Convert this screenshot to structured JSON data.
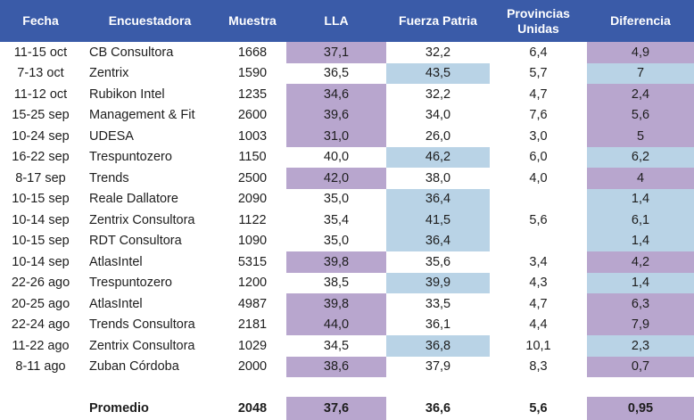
{
  "table": {
    "headers": [
      "Fecha",
      "Encuestadora",
      "Muestra",
      "LLA",
      "Fuerza Patria",
      "Provincias Unidas",
      "Diferencia"
    ],
    "header_provincias_line1": "Provincias",
    "header_provincias_line2": "Unidas",
    "rows": [
      {
        "fecha": "11-15 oct",
        "encuestadora": "CB Consultora",
        "muestra": "1668",
        "lla": "37,1",
        "fp": "32,2",
        "pu": "6,4",
        "dif": "4,9",
        "hl": "lla",
        "dif_hl": "purple"
      },
      {
        "fecha": "7-13 oct",
        "encuestadora": "Zentrix",
        "muestra": "1590",
        "lla": "36,5",
        "fp": "43,5",
        "pu": "5,7",
        "dif": "7",
        "hl": "fp",
        "dif_hl": "blue"
      },
      {
        "fecha": "11-12 oct",
        "encuestadora": "Rubikon Intel",
        "muestra": "1235",
        "lla": "34,6",
        "fp": "32,2",
        "pu": "4,7",
        "dif": "2,4",
        "hl": "lla",
        "dif_hl": "purple"
      },
      {
        "fecha": "15-25 sep",
        "encuestadora": "Management & Fit",
        "muestra": "2600",
        "lla": "39,6",
        "fp": "34,0",
        "pu": "7,6",
        "dif": "5,6",
        "hl": "lla",
        "dif_hl": "purple"
      },
      {
        "fecha": "10-24 sep",
        "encuestadora": "UDESA",
        "muestra": "1003",
        "lla": "31,0",
        "fp": "26,0",
        "pu": "3,0",
        "dif": "5",
        "hl": "lla",
        "dif_hl": "purple"
      },
      {
        "fecha": "16-22 sep",
        "encuestadora": "Trespuntozero",
        "muestra": "1150",
        "lla": "40,0",
        "fp": "46,2",
        "pu": "6,0",
        "dif": "6,2",
        "hl": "fp",
        "dif_hl": "blue"
      },
      {
        "fecha": "8-17 sep",
        "encuestadora": "Trends",
        "muestra": "2500",
        "lla": "42,0",
        "fp": "38,0",
        "pu": "4,0",
        "dif": "4",
        "hl": "lla",
        "dif_hl": "purple"
      },
      {
        "fecha": "10-15 sep",
        "encuestadora": "Reale Dallatore",
        "muestra": "2090",
        "lla": "35,0",
        "fp": "36,4",
        "pu": "",
        "dif": "1,4",
        "hl": "fp",
        "dif_hl": "blue"
      },
      {
        "fecha": "10-14 sep",
        "encuestadora": "Zentrix Consultora",
        "muestra": "1122",
        "lla": "35,4",
        "fp": "41,5",
        "pu": "5,6",
        "dif": "6,1",
        "hl": "fp",
        "dif_hl": "blue"
      },
      {
        "fecha": "10-15 sep",
        "encuestadora": "RDT Consultora",
        "muestra": "1090",
        "lla": "35,0",
        "fp": "36,4",
        "pu": "",
        "dif": "1,4",
        "hl": "fp",
        "dif_hl": "blue"
      },
      {
        "fecha": "10-14 sep",
        "encuestadora": "AtlasIntel",
        "muestra": "5315",
        "lla": "39,8",
        "fp": "35,6",
        "pu": "3,4",
        "dif": "4,2",
        "hl": "lla",
        "dif_hl": "purple"
      },
      {
        "fecha": "22-26 ago",
        "encuestadora": "Trespuntozero",
        "muestra": "1200",
        "lla": "38,5",
        "fp": "39,9",
        "pu": "4,3",
        "dif": "1,4",
        "hl": "fp",
        "dif_hl": "blue"
      },
      {
        "fecha": "20-25 ago",
        "encuestadora": "AtlasIntel",
        "muestra": "4987",
        "lla": "39,8",
        "fp": "33,5",
        "pu": "4,7",
        "dif": "6,3",
        "hl": "lla",
        "dif_hl": "purple"
      },
      {
        "fecha": "22-24 ago",
        "encuestadora": "Trends Consultora",
        "muestra": "2181",
        "lla": "44,0",
        "fp": "36,1",
        "pu": "4,4",
        "dif": "7,9",
        "hl": "lla",
        "dif_hl": "purple"
      },
      {
        "fecha": "11-22 ago",
        "encuestadora": "Zentrix Consultora",
        "muestra": "1029",
        "lla": "34,5",
        "fp": "36,8",
        "pu": "10,1",
        "dif": "2,3",
        "hl": "fp",
        "dif_hl": "blue"
      },
      {
        "fecha": "8-11 ago",
        "encuestadora": "Zuban Córdoba",
        "muestra": "2000",
        "lla": "38,6",
        "fp": "37,9",
        "pu": "8,3",
        "dif": "0,7",
        "hl": "lla",
        "dif_hl": "purple"
      }
    ],
    "summary": {
      "label": "Promedio",
      "muestra": "2048",
      "lla": "37,6",
      "fp": "36,6",
      "pu": "5,6",
      "dif": "0,95"
    }
  },
  "colors": {
    "header_bg": "#3A5BA8",
    "lla_highlight": "#B8A6CE",
    "fp_highlight": "#B9D3E6"
  }
}
